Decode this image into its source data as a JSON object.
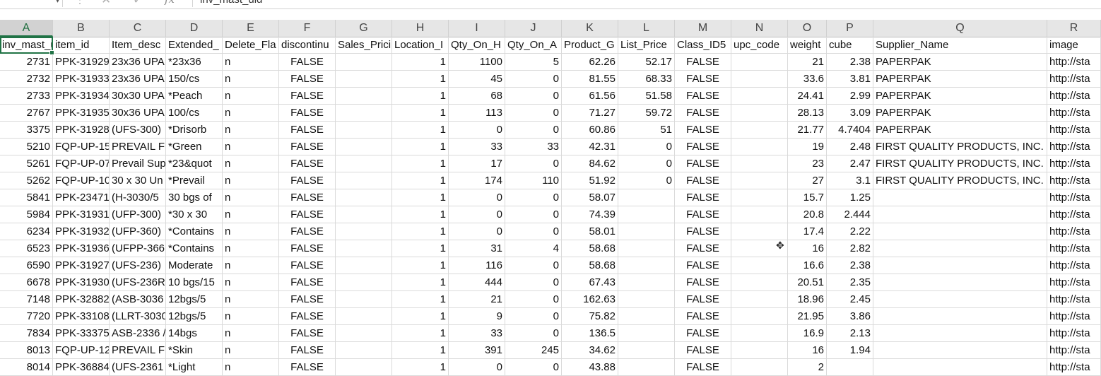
{
  "formula_bar": {
    "cancel_icon": "✕",
    "enter_icon": "✓",
    "fx_label": "fx",
    "content": "inv_mast_uid"
  },
  "columns": [
    "A",
    "B",
    "C",
    "D",
    "E",
    "F",
    "G",
    "H",
    "I",
    "J",
    "K",
    "L",
    "M",
    "N",
    "O",
    "P",
    "Q",
    "R"
  ],
  "selected_column": "A",
  "header_row": [
    "inv_mast_uid",
    "item_id",
    "Item_desc",
    "Extended_",
    "Delete_Fla",
    "discontinu",
    "Sales_Prici",
    "Location_I",
    "Qty_On_H",
    "Qty_On_A",
    "Product_G",
    "List_Price",
    "Class_ID5",
    "upc_code",
    "weight",
    "cube",
    "Supplier_Name",
    "image"
  ],
  "rows": [
    [
      "2731",
      "PPK-31929",
      "23x36 UPA",
      "*23x36",
      "n",
      "FALSE",
      "",
      "1",
      "1100",
      "5",
      "62.26",
      "52.17",
      "FALSE",
      "",
      "21",
      "2.38",
      "PAPERPAK",
      "http://sta"
    ],
    [
      "2732",
      "PPK-31933",
      "23x36 UPA",
      "150/cs",
      "n",
      "FALSE",
      "",
      "1",
      "45",
      "0",
      "81.55",
      "68.33",
      "FALSE",
      "",
      "33.6",
      "3.81",
      "PAPERPAK",
      "http://sta"
    ],
    [
      "2733",
      "PPK-31934",
      "30x30 UPA",
      "*Peach",
      "n",
      "FALSE",
      "",
      "1",
      "68",
      "0",
      "61.56",
      "51.58",
      "FALSE",
      "",
      "24.41",
      "2.99",
      "PAPERPAK",
      "http://sta"
    ],
    [
      "2767",
      "PPK-31935",
      "30x36 UPA",
      "100/cs",
      "n",
      "FALSE",
      "",
      "1",
      "113",
      "0",
      "71.27",
      "59.72",
      "FALSE",
      "",
      "28.13",
      "3.09",
      "PAPERPAK",
      "http://sta"
    ],
    [
      "3375",
      "PPK-31928",
      "(UFS-300)",
      "*Drisorb",
      "n",
      "FALSE",
      "",
      "1",
      "0",
      "0",
      "60.86",
      "51",
      "FALSE",
      "",
      "21.77",
      "4.7404",
      "PAPERPAK",
      "http://sta"
    ],
    [
      "5210",
      "FQP-UP-15",
      "PREVAIL FI",
      "*Green",
      "n",
      "FALSE",
      "",
      "1",
      "33",
      "33",
      "42.31",
      "0",
      "FALSE",
      "",
      "19",
      "2.48",
      "FIRST QUALITY PRODUCTS, INC.",
      "http://sta"
    ],
    [
      "5261",
      "FQP-UP-07",
      "Prevail Sup",
      "*23&quot",
      "n",
      "FALSE",
      "",
      "1",
      "17",
      "0",
      "84.62",
      "0",
      "FALSE",
      "",
      "23",
      "2.47",
      "FIRST QUALITY PRODUCTS, INC.",
      "http://sta"
    ],
    [
      "5262",
      "FQP-UP-10",
      "30 x 30 Un",
      "*Prevail",
      "n",
      "FALSE",
      "",
      "1",
      "174",
      "110",
      "51.92",
      "0",
      "FALSE",
      "",
      "27",
      "3.1",
      "FIRST QUALITY PRODUCTS, INC.",
      "http://sta"
    ],
    [
      "5841",
      "PPK-23471",
      "(H-3030/5",
      "30 bgs of",
      "n",
      "FALSE",
      "",
      "1",
      "0",
      "0",
      "58.07",
      "",
      "FALSE",
      "",
      "15.7",
      "1.25",
      "",
      "http://sta"
    ],
    [
      "5984",
      "PPK-31931",
      "(UFP-300)",
      "*30 x 30",
      "n",
      "FALSE",
      "",
      "1",
      "0",
      "0",
      "74.39",
      "",
      "FALSE",
      "",
      "20.8",
      "2.444",
      "",
      "http://sta"
    ],
    [
      "6234",
      "PPK-31932",
      "(UFP-360)",
      "*Contains",
      "n",
      "FALSE",
      "",
      "1",
      "0",
      "0",
      "58.01",
      "",
      "FALSE",
      "",
      "17.4",
      "2.22",
      "",
      "http://sta"
    ],
    [
      "6523",
      "PPK-31936",
      "(UFPP-366",
      "*Contains",
      "n",
      "FALSE",
      "",
      "1",
      "31",
      "4",
      "58.68",
      "",
      "FALSE",
      "",
      "16",
      "2.82",
      "",
      "http://sta"
    ],
    [
      "6590",
      "PPK-31927",
      "(UFS-236)",
      "Moderate",
      "n",
      "FALSE",
      "",
      "1",
      "116",
      "0",
      "58.68",
      "",
      "FALSE",
      "",
      "16.6",
      "2.38",
      "",
      "http://sta"
    ],
    [
      "6678",
      "PPK-31930",
      "(UFS-236R",
      "10 bgs/15",
      "n",
      "FALSE",
      "",
      "1",
      "444",
      "0",
      "67.43",
      "",
      "FALSE",
      "",
      "20.51",
      "2.35",
      "",
      "http://sta"
    ],
    [
      "7148",
      "PPK-32882",
      "(ASB-3036",
      "12bgs/5",
      "n",
      "FALSE",
      "",
      "1",
      "21",
      "0",
      "162.63",
      "",
      "FALSE",
      "",
      "18.96",
      "2.45",
      "",
      "http://sta"
    ],
    [
      "7720",
      "PPK-33108",
      "(LLRT-3030",
      "12bgs/5",
      "n",
      "FALSE",
      "",
      "1",
      "9",
      "0",
      "75.82",
      "",
      "FALSE",
      "",
      "21.95",
      "3.86",
      "",
      "http://sta"
    ],
    [
      "7834",
      "PPK-33375",
      "ASB-2336 /",
      "14bgs",
      "n",
      "FALSE",
      "",
      "1",
      "33",
      "0",
      "136.5",
      "",
      "FALSE",
      "",
      "16.9",
      "2.13",
      "",
      "http://sta"
    ],
    [
      "8013",
      "FQP-UP-12",
      "PREVAIL FI",
      "*Skin",
      "n",
      "FALSE",
      "",
      "1",
      "391",
      "245",
      "34.62",
      "",
      "FALSE",
      "",
      "16",
      "1.94",
      "",
      "http://sta"
    ],
    [
      "8014",
      "PPK-36884",
      "(UFS-2361",
      "*Light",
      "n",
      "FALSE",
      "",
      "1",
      "0",
      "0",
      "43.88",
      "",
      "FALSE",
      "",
      "2",
      "",
      "",
      "http://sta"
    ]
  ]
}
